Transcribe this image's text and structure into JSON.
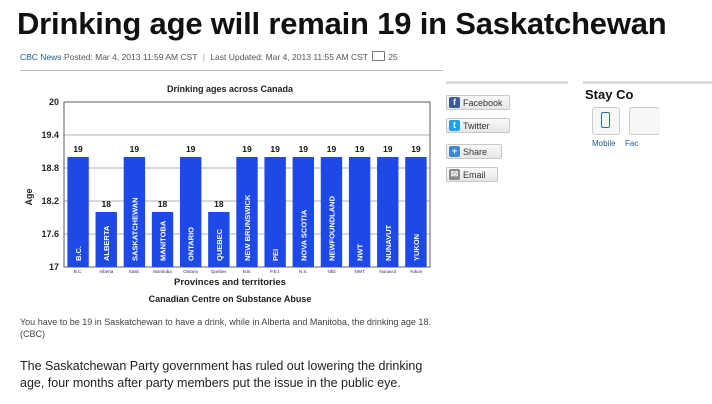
{
  "article": {
    "headline": "Drinking age will remain 19 in Saskatchewan",
    "source": "CBC News",
    "posted": "Posted: Mar 4, 2013 11:59 AM CST",
    "separator": "|",
    "updated": "Last Updated: Mar 4, 2013 11:55 AM CST",
    "comment_count": "25",
    "caption": "You have to be 19 in Saskatchewan to have a drink, while in Alberta and Manitoba, the drinking age 18. (CBC)",
    "body": "The Saskatchewan Party government has ruled out lowering the drinking age, four months after party members put the issue in the public eye."
  },
  "share": [
    {
      "label": "Facebook",
      "icon": "facebook-icon",
      "color": "#3b5998",
      "glyph": "f"
    },
    {
      "label": "Twitter",
      "icon": "twitter-icon",
      "color": "#1da1f2",
      "glyph": "t"
    },
    {
      "label": "Share",
      "icon": "share-plus-icon",
      "color": "#3c8ad1",
      "glyph": "+"
    },
    {
      "label": "Email",
      "icon": "email-icon",
      "color": "#8a8a8a",
      "glyph": "✉"
    }
  ],
  "stay_connected": {
    "title": "Stay Co",
    "items": [
      {
        "label": "Mobile",
        "icon": "mobile-phone-icon"
      },
      {
        "label": "Fac",
        "icon": "facebook-icon"
      }
    ]
  },
  "colors": {
    "bar": "#1f49e6",
    "link": "#1f5a9c"
  },
  "chart_data": {
    "type": "bar",
    "title": "Drinking ages across Canada",
    "xlabel": "Provinces and territories",
    "ylabel": "Age",
    "source": "Canadian Centre on Substance Abuse",
    "ylim": [
      17,
      20
    ],
    "yticks": [
      "17",
      "17.6",
      "18.2",
      "18.8",
      "19.4",
      "20"
    ],
    "ytick_values": [
      17,
      17.6,
      18.2,
      18.8,
      19.4,
      20
    ],
    "categories": [
      "B.C.",
      "ALBERTA",
      "SASKATCHEWAN",
      "MANITOBA",
      "ONTARIO",
      "QUEBEC",
      "NEW BRUNSWICK",
      "PEI",
      "NOVA SCOTIA",
      "NEWFOUNDLAND",
      "NWT",
      "NUNAVUT",
      "YUKON"
    ],
    "short_labels": [
      "B.C.",
      "Alberta",
      "Sask.",
      "Manitoba",
      "Ontario",
      "Quebec",
      "N.B.",
      "P.E.I.",
      "N.S.",
      "Nfld",
      "NWT",
      "Nunavut",
      "Yukon"
    ],
    "values": [
      19,
      18,
      19,
      18,
      19,
      18,
      19,
      19,
      19,
      19,
      19,
      19,
      19
    ],
    "data_labels": [
      "19",
      "18",
      "19",
      "18",
      "19",
      "18",
      "19",
      "19",
      "19",
      "19",
      "19",
      "19",
      "19"
    ],
    "grid": true
  }
}
